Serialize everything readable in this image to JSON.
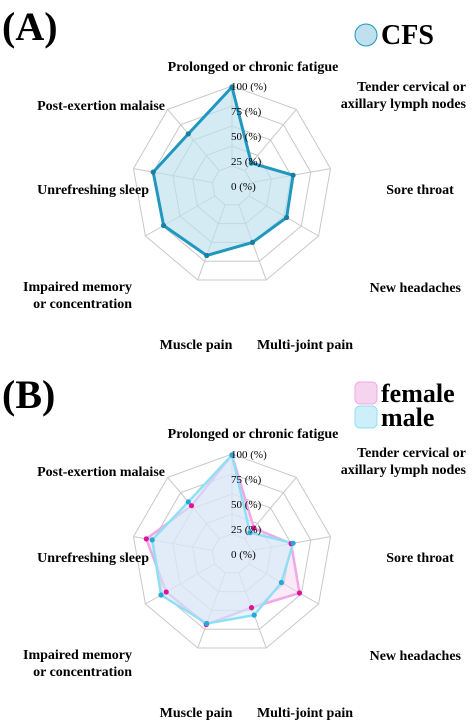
{
  "chart_data": [
    {
      "panel_label": "(A)",
      "type": "radar",
      "categories": [
        "Prolonged or chronic fatigue",
        "Tender cervical or axillary lymph nodes",
        "Sore throat",
        "New headaches",
        "Multi-joint pain",
        "Muscle pain",
        "Impaired memory or concentration",
        "Unrefreshing sleep",
        "Post-exertion malaise"
      ],
      "category_lines": [
        [
          "Prolonged or chronic fatigue"
        ],
        [
          "Tender cervical or",
          "axillary lymph nodes"
        ],
        [
          "Sore throat"
        ],
        [
          "New headaches"
        ],
        [
          "Multi-joint pain"
        ],
        [
          "Muscle pain"
        ],
        [
          "Impaired memory",
          "or concentration"
        ],
        [
          "Unrefreshing sleep"
        ],
        [
          "Post-exertion malaise"
        ]
      ],
      "ticks": [
        "0 (%)",
        "25 (%)",
        "50 (%)",
        "75 (%)",
        "100 (%)"
      ],
      "rlim": [
        0,
        100
      ],
      "grid_levels": 5,
      "legend_position": "top-right",
      "series": [
        {
          "name": "CFS",
          "values": [
            99,
            30,
            62,
            63,
            60,
            74,
            79,
            80,
            68
          ],
          "line_color": "#1f97bf",
          "fill_color": "#bfe0ee",
          "marker_color": "#1a7ea0",
          "fill_opacity": 0.65,
          "line_width": 3
        }
      ]
    },
    {
      "panel_label": "(B)",
      "type": "radar",
      "categories": [
        "Prolonged or chronic fatigue",
        "Tender cervical or axillary lymph nodes",
        "Sore throat",
        "New headaches",
        "Multi-joint pain",
        "Muscle pain",
        "Impaired memory or concentration",
        "Unrefreshing sleep",
        "Post-exertion malaise"
      ],
      "category_lines": [
        [
          "Prolonged or chronic fatigue"
        ],
        [
          "Tender cervical or",
          "axillary lymph nodes"
        ],
        [
          "Sore throat"
        ],
        [
          "New headaches"
        ],
        [
          "Multi-joint pain"
        ],
        [
          "Muscle pain"
        ],
        [
          "Impaired memory",
          "or concentration"
        ],
        [
          "Unrefreshing sleep"
        ],
        [
          "Post-exertion malaise"
        ]
      ],
      "ticks": [
        "0 (%)",
        "25 (%)",
        "50 (%)",
        "75 (%)",
        "100 (%)"
      ],
      "rlim": [
        0,
        100
      ],
      "grid_levels": 5,
      "legend_position": "top-right",
      "series": [
        {
          "name": "female",
          "values": [
            99,
            34,
            60,
            78,
            57,
            75,
            76,
            87,
            63
          ],
          "line_color": "#f0a8e6",
          "fill_color": "#f6d4f0",
          "marker_color": "#e0119a",
          "fill_opacity": 0.5,
          "line_width": 2.5
        },
        {
          "name": "male",
          "values": [
            99,
            28,
            62,
            57,
            65,
            74,
            82,
            81,
            68
          ],
          "line_color": "#8fe0f4",
          "fill_color": "#cdeffa",
          "marker_color": "#2aa6d8",
          "fill_opacity": 0.55,
          "line_width": 2.5
        }
      ]
    }
  ]
}
